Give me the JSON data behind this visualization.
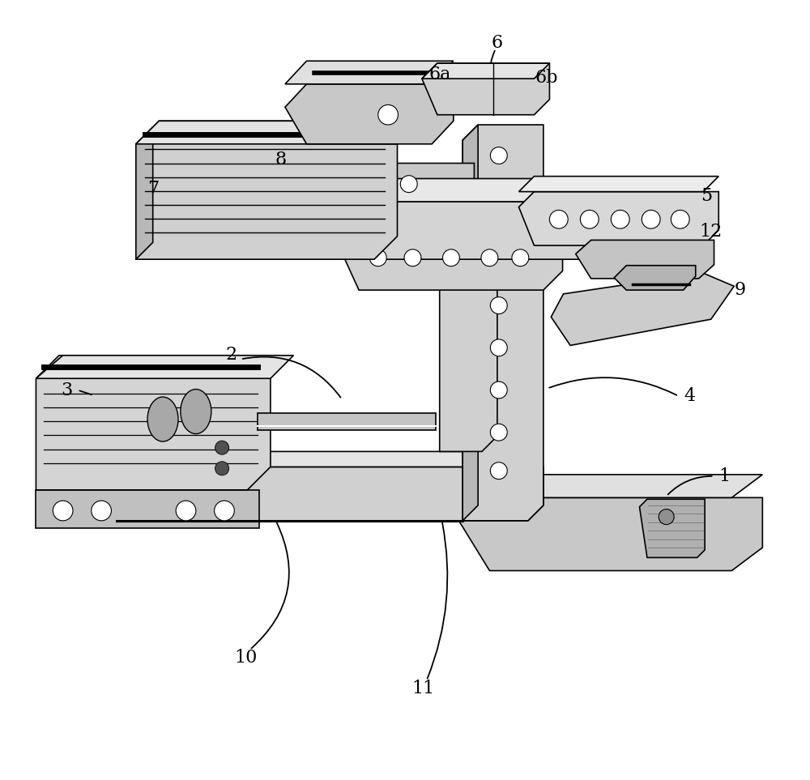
{
  "bg_color": "#ffffff",
  "line_color": "#000000",
  "figsize": [
    10.0,
    9.63
  ],
  "ann_fontsize": 16
}
